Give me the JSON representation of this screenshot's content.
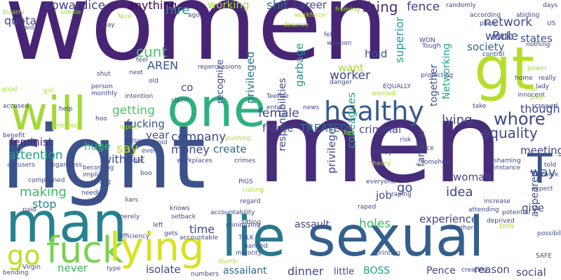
{
  "words": [
    {
      "text": "women",
      "color": "#482475"
    },
    {
      "text": "men",
      "color": "#472c7a"
    },
    {
      "text": "right",
      "color": "#3b528b"
    },
    {
      "text": "sexual",
      "color": "#355f8d"
    },
    {
      "text": "lie",
      "color": "#2a788e"
    },
    {
      "text": "man",
      "color": "#26828e"
    },
    {
      "text": "one",
      "color": "#2db27d"
    },
    {
      "text": "gt",
      "color": "#b5de2b"
    },
    {
      "text": "will",
      "color": "#a2da37"
    },
    {
      "text": "fuck",
      "color": "#7ad151"
    },
    {
      "text": "lying",
      "color": "#d8e219"
    },
    {
      "text": "healthy",
      "color": "#38598c"
    },
    {
      "text": "go",
      "color": "#bddf26"
    },
    {
      "text": "T",
      "color": "#3b528b"
    },
    {
      "text": "whore",
      "color": "#3f4788"
    },
    {
      "text": "lying",
      "color": "#404688"
    },
    {
      "text": "cowardice",
      "color": "#414487"
    },
    {
      "text": "anything",
      "color": "#440154"
    },
    {
      "text": "hire",
      "color": "#1f948c"
    },
    {
      "text": "working",
      "color": "#a5db36"
    },
    {
      "text": "shit",
      "color": "#2c728e"
    },
    {
      "text": "career",
      "color": "#3f4788"
    },
    {
      "text": "thing",
      "color": "#472c7a"
    },
    {
      "text": "fence",
      "color": "#424086"
    },
    {
      "text": "network",
      "color": "#3e4a89"
    },
    {
      "text": "quota",
      "color": "#3e4989"
    },
    {
      "text": "Rule",
      "color": "#3b528b"
    },
    {
      "text": "states",
      "color": "#3e4a89"
    },
    {
      "text": "society",
      "color": "#355f8d"
    },
    {
      "text": "work",
      "color": "#3f4788"
    },
    {
      "text": "cunt",
      "color": "#46c06f"
    },
    {
      "text": "AREN",
      "color": "#3a548c"
    },
    {
      "text": "hold",
      "color": "#3b528b"
    },
    {
      "text": "superior",
      "color": "#20a386"
    },
    {
      "text": "Networking",
      "color": "#22a785"
    },
    {
      "text": "want",
      "color": "#a8db34"
    },
    {
      "text": "worker",
      "color": "#3f4788"
    },
    {
      "text": "privileged",
      "color": "#2c728e"
    },
    {
      "text": "garbage",
      "color": "#21918c"
    },
    {
      "text": "recognize",
      "color": "#3f4788"
    },
    {
      "text": "co",
      "color": "#3e4989"
    },
    {
      "text": "getting",
      "color": "#4ac16d"
    },
    {
      "text": "fucking",
      "color": "#3b528b"
    },
    {
      "text": "female",
      "color": "#3e4989"
    },
    {
      "text": "frame",
      "color": "#3f4788"
    },
    {
      "text": "TREATED",
      "color": "#2c728e"
    },
    {
      "text": "criminal",
      "color": "#3e4989"
    },
    {
      "text": "together",
      "color": "#3b528b"
    },
    {
      "text": "though",
      "color": "#3e4989"
    },
    {
      "text": "equality",
      "color": "#3f4788"
    },
    {
      "text": "year",
      "color": "#3b528b"
    },
    {
      "text": "company",
      "color": "#3e4989"
    },
    {
      "text": "feminist",
      "color": "#482173"
    },
    {
      "text": "attention",
      "color": "#1fa088"
    },
    {
      "text": "say",
      "color": "#b8de29"
    },
    {
      "text": "huge",
      "color": "#35b779"
    },
    {
      "text": "money",
      "color": "#3f4788"
    },
    {
      "text": "create",
      "color": "#31688e"
    },
    {
      "text": "meeting",
      "color": "#424086"
    },
    {
      "text": "way",
      "color": "#3b528b"
    },
    {
      "text": "without",
      "color": "#3e4989"
    },
    {
      "text": "making",
      "color": "#3ab963"
    },
    {
      "text": "stop",
      "color": "#26828e"
    },
    {
      "text": "colleagues",
      "color": "#20a386"
    },
    {
      "text": "privileges",
      "color": "#3e4989"
    },
    {
      "text": "responsibilities",
      "color": "#3e4989"
    },
    {
      "text": "go",
      "color": "#3e4989"
    },
    {
      "text": "job",
      "color": "#3f4788"
    },
    {
      "text": "familiar",
      "color": "#3e4989"
    },
    {
      "text": "woman",
      "color": "#3e4989"
    },
    {
      "text": "idea",
      "color": "#404688"
    },
    {
      "text": "give",
      "color": "#3e4989"
    },
    {
      "text": "appeared",
      "color": "#3e4989"
    },
    {
      "text": "experience",
      "color": "#3f4788"
    },
    {
      "text": "assault",
      "color": "#3f4788"
    },
    {
      "text": "holes",
      "color": "#3ab963"
    },
    {
      "text": "time",
      "color": "#3f4788"
    },
    {
      "text": "never",
      "color": "#3ab963"
    },
    {
      "text": "isolate",
      "color": "#3f4788"
    },
    {
      "text": "assailant",
      "color": "#31688e"
    },
    {
      "text": "dinner",
      "color": "#3e4989"
    },
    {
      "text": "little",
      "color": "#3f4788"
    },
    {
      "text": "BOSS",
      "color": "#1fa088"
    },
    {
      "text": "Pence",
      "color": "#3f4788"
    },
    {
      "text": "reason",
      "color": "#3e4989"
    },
    {
      "text": "social",
      "color": "#3e4989"
    },
    {
      "text": "bizarre",
      "color": "#8fd744"
    },
    {
      "text": "simple",
      "color": "#8fd744"
    },
    {
      "text": "ago",
      "color": "#3f4788"
    },
    {
      "text": "workforce",
      "color": "#bade28"
    },
    {
      "text": "framing",
      "color": "#95d840"
    },
    {
      "text": "randomly",
      "color": "#3f4788"
    },
    {
      "text": "days",
      "color": "#3f4788"
    },
    {
      "text": "according",
      "color": "#3f4788"
    },
    {
      "text": "abiding",
      "color": "#3f4788"
    },
    {
      "text": "place",
      "color": "#3f4788"
    },
    {
      "text": "US",
      "color": "#3f4788"
    },
    {
      "text": "said",
      "color": "#3f4788"
    },
    {
      "text": "act",
      "color": "#3f4788"
    },
    {
      "text": "may",
      "color": "#3f4788"
    },
    {
      "text": "Nice",
      "color": "#a8db34"
    },
    {
      "text": "deserve",
      "color": "#a8db34"
    },
    {
      "text": "felt",
      "color": "#3f4788"
    },
    {
      "text": "weapon",
      "color": "#3f4788"
    },
    {
      "text": "WON",
      "color": "#3f4788"
    },
    {
      "text": "Tough",
      "color": "#3f4788"
    },
    {
      "text": "nothing",
      "color": "#3f4788"
    },
    {
      "text": "control",
      "color": "#3f4788"
    },
    {
      "text": "feel",
      "color": "#3f4788"
    },
    {
      "text": "repercussions",
      "color": "#3f4788"
    },
    {
      "text": "next",
      "color": "#3f4788"
    },
    {
      "text": "old",
      "color": "#3f4788"
    },
    {
      "text": "shut",
      "color": "#3f4788"
    },
    {
      "text": "person",
      "color": "#3f4788"
    },
    {
      "text": "girl",
      "color": "#a8db34"
    },
    {
      "text": "good",
      "color": "#a8db34"
    },
    {
      "text": "monthly",
      "color": "#3f4788"
    },
    {
      "text": "intention",
      "color": "#3f4788"
    },
    {
      "text": "danger",
      "color": "#3f4788"
    },
    {
      "text": "EQUALLY",
      "color": "#3f4788"
    },
    {
      "text": "worried",
      "color": "#a8db34"
    },
    {
      "text": "protecting",
      "color": "#3f4788"
    },
    {
      "text": "power",
      "color": "#a8db34"
    },
    {
      "text": "home",
      "color": "#3f4788"
    },
    {
      "text": "really",
      "color": "#3f4788"
    },
    {
      "text": "lady",
      "color": "#3f4788"
    },
    {
      "text": "five",
      "color": "#a8db34"
    },
    {
      "text": "pins",
      "color": "#a8db34"
    },
    {
      "text": "innocent",
      "color": "#3f4788"
    },
    {
      "text": "screwed",
      "color": "#3f4788"
    },
    {
      "text": "claim",
      "color": "#3f4788"
    },
    {
      "text": "Teehee",
      "color": "#3f4788"
    },
    {
      "text": "enter",
      "color": "#3f4788"
    },
    {
      "text": "news",
      "color": "#3f4788"
    },
    {
      "text": "take",
      "color": "#3f4788"
    },
    {
      "text": "accused",
      "color": "#3f4788"
    },
    {
      "text": "help",
      "color": "#3f4788"
    },
    {
      "text": "method",
      "color": "#a8db34"
    },
    {
      "text": "hoo",
      "color": "#3f4788"
    },
    {
      "text": "report",
      "color": "#a8db34"
    },
    {
      "text": "bet",
      "color": "#a8db34"
    },
    {
      "text": "risk",
      "color": "#3f4788"
    },
    {
      "text": "pushing",
      "color": "#a8db34"
    },
    {
      "text": "false",
      "color": "#3f4788"
    },
    {
      "text": "avoid",
      "color": "#3f4788"
    },
    {
      "text": "shortly",
      "color": "#3f4788"
    },
    {
      "text": "Notice",
      "color": "#3f4788"
    },
    {
      "text": "benefit",
      "color": "#3f4788"
    },
    {
      "text": "even",
      "color": "#3f4788"
    },
    {
      "text": "accusers",
      "color": "#3f4788"
    },
    {
      "text": "regardless",
      "color": "#3f4788"
    },
    {
      "text": "prior",
      "color": "#3f4788"
    },
    {
      "text": "workplaces",
      "color": "#3f4788"
    },
    {
      "text": "crimes",
      "color": "#3f4788"
    },
    {
      "text": "theory",
      "color": "#a8db34"
    },
    {
      "text": "shaming",
      "color": "#3f4788"
    },
    {
      "text": "instance",
      "color": "#3f4788"
    },
    {
      "text": "told",
      "color": "#3f4788"
    },
    {
      "text": "network",
      "color": "#3f4788"
    },
    {
      "text": "becoming",
      "color": "#3f4788"
    },
    {
      "text": "implies",
      "color": "#3f4788"
    },
    {
      "text": "boo",
      "color": "#3f4788"
    },
    {
      "text": "expect",
      "color": "#3f4788"
    },
    {
      "text": "complained",
      "color": "#3f4788"
    },
    {
      "text": "wrong",
      "color": "#3f4788"
    },
    {
      "text": "PIGS",
      "color": "#3f4788"
    },
    {
      "text": "everyone",
      "color": "#3f4788"
    },
    {
      "text": "raping",
      "color": "#3f4788"
    },
    {
      "text": "somehow",
      "color": "#3f4788"
    },
    {
      "text": "needles",
      "color": "#3f4788"
    },
    {
      "text": "liars",
      "color": "#3f4788"
    },
    {
      "text": "risking",
      "color": "#a8db34"
    },
    {
      "text": "increase",
      "color": "#3f4788"
    },
    {
      "text": "either",
      "color": "#3f4788"
    },
    {
      "text": "regard",
      "color": "#3f4788"
    },
    {
      "text": "raped",
      "color": "#3f4788"
    },
    {
      "text": "attending",
      "color": "#3f4788"
    },
    {
      "text": "potential",
      "color": "#3f4788"
    },
    {
      "text": "paid",
      "color": "#3f4788"
    },
    {
      "text": "knows",
      "color": "#3f4788"
    },
    {
      "text": "setback",
      "color": "#3f4788"
    },
    {
      "text": "merely",
      "color": "#3f4788"
    },
    {
      "text": "accountability",
      "color": "#3f4788"
    },
    {
      "text": "minimizing",
      "color": "#3f4788"
    },
    {
      "text": "sitting",
      "color": "#3f4788"
    },
    {
      "text": "deprived",
      "color": "#3f4788"
    },
    {
      "text": "DON",
      "color": "#a8db34"
    },
    {
      "text": "left",
      "color": "#3f4788"
    },
    {
      "text": "accountable",
      "color": "#3f4788"
    },
    {
      "text": "another",
      "color": "#3f4788"
    },
    {
      "text": "efficiency",
      "color": "#3f4788"
    },
    {
      "text": "gets",
      "color": "#3f4788"
    },
    {
      "text": "TALK",
      "color": "#3f4788"
    },
    {
      "text": "banned",
      "color": "#3f4788"
    },
    {
      "text": "majority",
      "color": "#3f4788"
    },
    {
      "text": "possibility",
      "color": "#3f4788"
    },
    {
      "text": "SAFE",
      "color": "#3f4788"
    },
    {
      "text": "type",
      "color": "#3f4788"
    },
    {
      "text": "numbers",
      "color": "#3f4788"
    },
    {
      "text": "dumb",
      "color": "#a8db34"
    },
    {
      "text": "printing",
      "color": "#3f4788"
    },
    {
      "text": "creating",
      "color": "#3f4788"
    },
    {
      "text": "Virgin",
      "color": "#3f4788"
    },
    {
      "text": "bending",
      "color": "#3f4788"
    }
  ]
}
